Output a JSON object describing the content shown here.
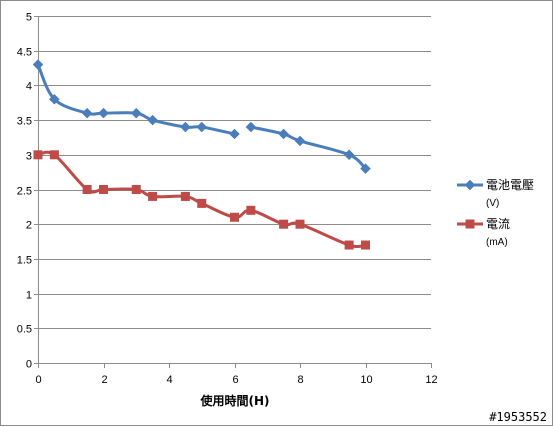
{
  "chart_data": {
    "type": "line",
    "xlabel": "使用時間(H)",
    "ylabel": "",
    "xlim": [
      0,
      12
    ],
    "ylim": [
      0,
      5
    ],
    "xticks": [
      0,
      2,
      4,
      6,
      8,
      10,
      12
    ],
    "yticks": [
      0,
      0.5,
      1,
      1.5,
      2,
      2.5,
      3,
      3.5,
      4,
      4.5,
      5
    ],
    "ytick_labels": [
      "0",
      "0.5",
      "1",
      "1.5",
      "2",
      "2.5",
      "3",
      "3.5",
      "4",
      "4.5",
      "5"
    ],
    "grid": "horizontal",
    "legend_position": "right",
    "series": [
      {
        "name": "電池電壓",
        "unit": "(V)",
        "color": "#4a7ebb",
        "marker": "diamond",
        "segments": [
          {
            "x": [
              0,
              0.5,
              1.5,
              2,
              3,
              3.5,
              4.5,
              5,
              6
            ],
            "y": [
              4.3,
              3.8,
              3.6,
              3.6,
              3.6,
              3.5,
              3.4,
              3.4,
              3.3
            ]
          },
          {
            "x": [
              6.5,
              7.5,
              8,
              9.5,
              10
            ],
            "y": [
              3.4,
              3.3,
              3.2,
              3.0,
              2.8
            ]
          }
        ]
      },
      {
        "name": "電流",
        "unit": "(mA)",
        "color": "#be4b48",
        "marker": "square",
        "segments": [
          {
            "x": [
              0,
              0.5,
              1.5,
              2,
              3,
              3.5,
              4.5,
              5,
              6,
              6.5,
              7.5,
              8,
              9.5,
              10
            ],
            "y": [
              3.0,
              3.0,
              2.5,
              2.5,
              2.5,
              2.4,
              2.4,
              2.3,
              2.1,
              2.2,
              2.0,
              2.0,
              1.7,
              1.7
            ]
          }
        ]
      }
    ]
  },
  "watermark": "#1953552"
}
